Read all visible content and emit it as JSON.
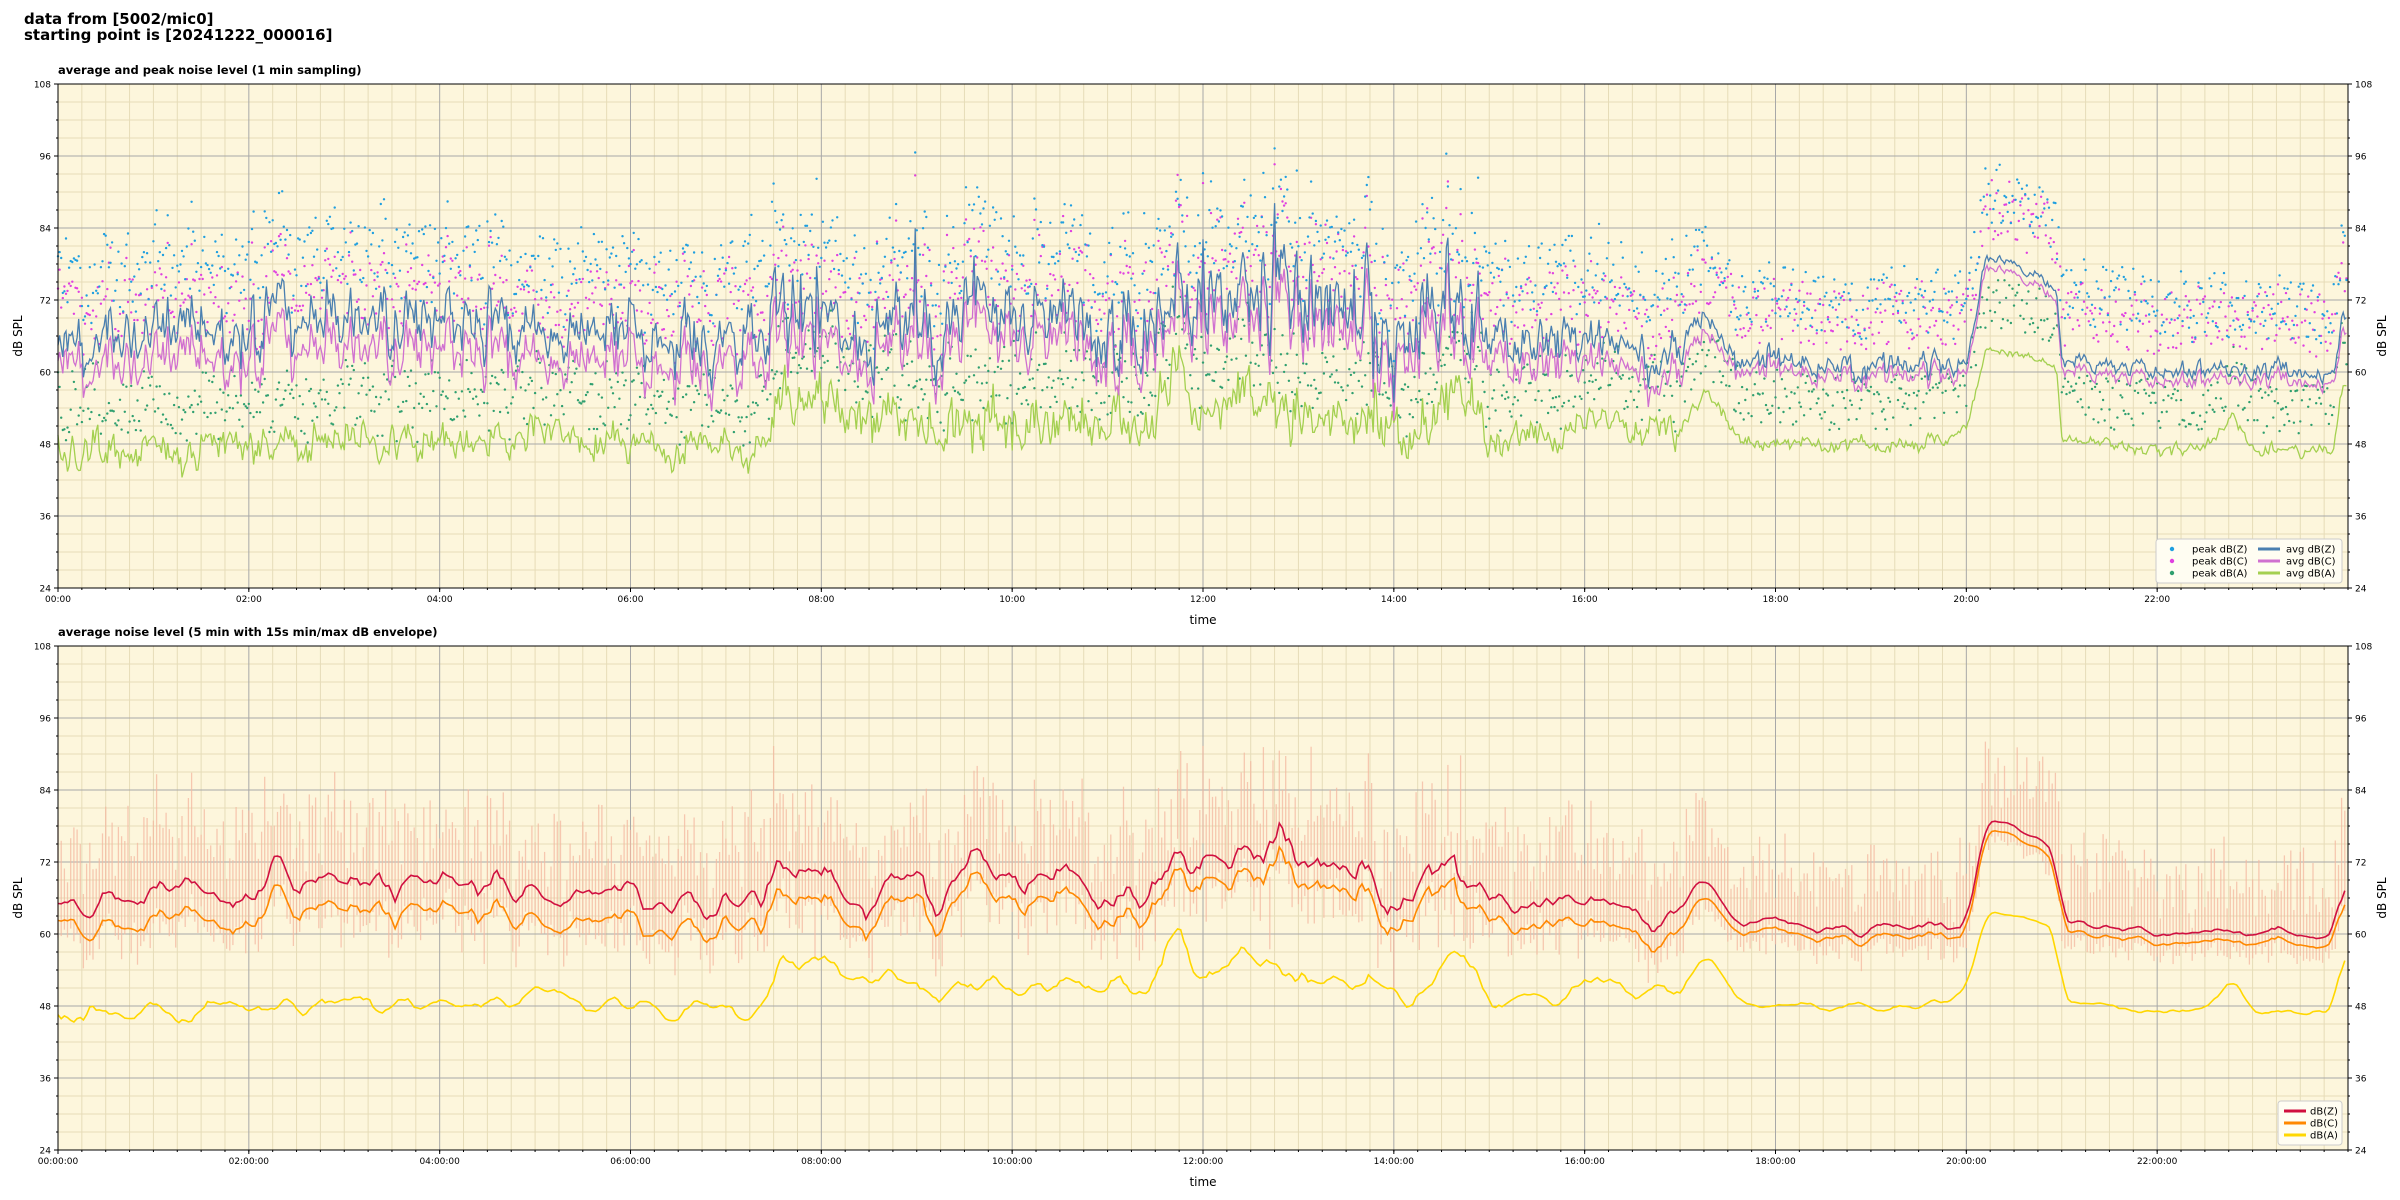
{
  "header": {
    "line1": "data from [5002/mic0]",
    "line2": "starting point is [20241222_000016]"
  },
  "colors": {
    "background": "#fdf6dc",
    "grid_major": "#a8a8a8",
    "grid_minor": "#e6dcb8",
    "peak_z": "#1f9fe0",
    "peak_c": "#e040e0",
    "peak_a": "#2f9f6f",
    "avg_z": "#4a7fb0",
    "avg_c": "#d070d0",
    "avg_a": "#a4d050",
    "db_z": "#d01040",
    "db_c": "#ff8800",
    "db_a": "#ffd700",
    "envelope": "#f4b8a0"
  },
  "chart_data": [
    {
      "type": "line",
      "title": "average and peak noise level (1 min sampling)",
      "xlabel": "time",
      "ylabel": "dB SPL",
      "ylabel_right": "dB SPL",
      "xlim": [
        0,
        24
      ],
      "ylim": [
        24,
        108
      ],
      "yticks": [
        24,
        36,
        48,
        60,
        72,
        84,
        96,
        108
      ],
      "xticks": [
        0,
        2,
        4,
        6,
        8,
        10,
        12,
        14,
        16,
        18,
        20,
        22
      ],
      "xtick_labels": [
        "00:00",
        "02:00",
        "04:00",
        "06:00",
        "08:00",
        "10:00",
        "12:00",
        "14:00",
        "16:00",
        "18:00",
        "20:00",
        "22:00"
      ],
      "grid": true,
      "legend_position": "bottom-right",
      "legend_columns": 2,
      "baseline_series_points": [
        [
          0,
          64,
          62,
          47
        ],
        [
          0.5,
          65,
          61,
          47
        ],
        [
          1,
          66,
          62,
          47
        ],
        [
          1.5,
          67,
          63,
          48
        ],
        [
          2,
          68,
          64,
          48
        ],
        [
          2.5,
          69,
          65,
          48
        ],
        [
          3,
          70,
          66,
          49
        ],
        [
          3.5,
          68,
          64,
          48
        ],
        [
          4,
          67,
          63,
          48
        ],
        [
          4.5,
          66,
          62,
          48
        ],
        [
          5,
          67,
          63,
          50
        ],
        [
          5.5,
          66,
          62,
          48
        ],
        [
          6,
          66,
          62,
          48
        ],
        [
          6.5,
          66,
          62,
          48
        ],
        [
          7,
          65,
          62,
          48
        ],
        [
          7.3,
          66,
          62,
          48
        ],
        [
          7.6,
          72,
          68,
          55
        ],
        [
          8,
          71,
          67,
          54
        ],
        [
          8.5,
          67,
          64,
          52
        ],
        [
          9,
          68,
          65,
          52
        ],
        [
          9.5,
          69,
          66,
          51
        ],
        [
          10,
          67,
          64,
          51
        ],
        [
          10.5,
          68,
          65,
          52
        ],
        [
          11,
          69,
          66,
          52
        ],
        [
          11.5,
          70,
          67,
          51
        ],
        [
          11.75,
          75,
          73,
          62
        ],
        [
          12,
          71,
          68,
          52
        ],
        [
          12.5,
          72,
          69,
          54
        ],
        [
          13,
          71,
          68,
          53
        ],
        [
          13.5,
          69,
          66,
          52
        ],
        [
          14,
          67,
          64,
          50
        ],
        [
          14.3,
          70,
          67,
          51
        ],
        [
          14.6,
          71,
          68,
          57
        ],
        [
          15,
          66,
          63,
          50
        ],
        [
          15.5,
          64,
          61,
          49
        ],
        [
          16,
          65,
          62,
          52
        ],
        [
          16.5,
          64,
          61,
          51
        ],
        [
          17,
          64,
          61,
          51
        ],
        [
          17.3,
          70,
          68,
          56
        ],
        [
          17.6,
          62,
          61,
          49
        ],
        [
          18,
          62,
          61,
          48
        ],
        [
          18.5,
          61,
          60,
          48
        ],
        [
          19,
          61,
          60,
          48
        ],
        [
          19.5,
          61,
          60,
          48
        ],
        [
          20,
          61,
          60,
          50
        ],
        [
          20.2,
          79,
          78,
          64
        ],
        [
          20.5,
          78,
          77,
          63
        ],
        [
          20.8,
          76,
          75,
          62
        ],
        [
          20.95,
          72,
          71,
          60
        ],
        [
          21,
          62,
          61,
          49
        ],
        [
          21.5,
          61,
          60,
          48
        ],
        [
          22,
          60,
          59,
          47
        ],
        [
          22.5,
          60,
          59,
          47
        ],
        [
          22.8,
          61,
          60,
          53
        ],
        [
          23,
          60,
          59,
          47
        ],
        [
          23.5,
          60,
          59,
          47
        ],
        [
          23.85,
          60,
          59,
          48
        ],
        [
          23.95,
          70,
          68,
          58
        ]
      ],
      "series": [
        {
          "name": "peak dB(Z)",
          "style": "points",
          "color_key": "peak_z"
        },
        {
          "name": "peak dB(C)",
          "style": "points",
          "color_key": "peak_c"
        },
        {
          "name": "peak dB(A)",
          "style": "points",
          "color_key": "peak_a"
        },
        {
          "name": "avg dB(Z)",
          "style": "line",
          "color_key": "avg_z"
        },
        {
          "name": "avg dB(C)",
          "style": "line",
          "color_key": "avg_c"
        },
        {
          "name": "avg dB(A)",
          "style": "line",
          "color_key": "avg_a"
        }
      ]
    },
    {
      "type": "line",
      "title": "average noise level (5 min with 15s min/max dB envelope)",
      "xlabel": "time",
      "ylabel": "dB SPL",
      "ylabel_right": "dB SPL",
      "xlim": [
        0,
        24
      ],
      "ylim": [
        24,
        108
      ],
      "yticks": [
        24,
        36,
        48,
        60,
        72,
        84,
        96,
        108
      ],
      "xticks": [
        0,
        2,
        4,
        6,
        8,
        10,
        12,
        14,
        16,
        18,
        20,
        22
      ],
      "xtick_labels": [
        "00:00:00",
        "02:00:00",
        "04:00:00",
        "06:00:00",
        "08:00:00",
        "10:00:00",
        "12:00:00",
        "14:00:00",
        "16:00:00",
        "18:00:00",
        "20:00:00",
        "22:00:00"
      ],
      "grid": true,
      "legend_position": "bottom-right",
      "legend_columns": 1,
      "series": [
        {
          "name": "dB(Z)",
          "style": "line",
          "color_key": "db_z"
        },
        {
          "name": "dB(C)",
          "style": "line",
          "color_key": "db_c"
        },
        {
          "name": "dB(A)",
          "style": "line",
          "color_key": "db_a"
        }
      ]
    }
  ]
}
